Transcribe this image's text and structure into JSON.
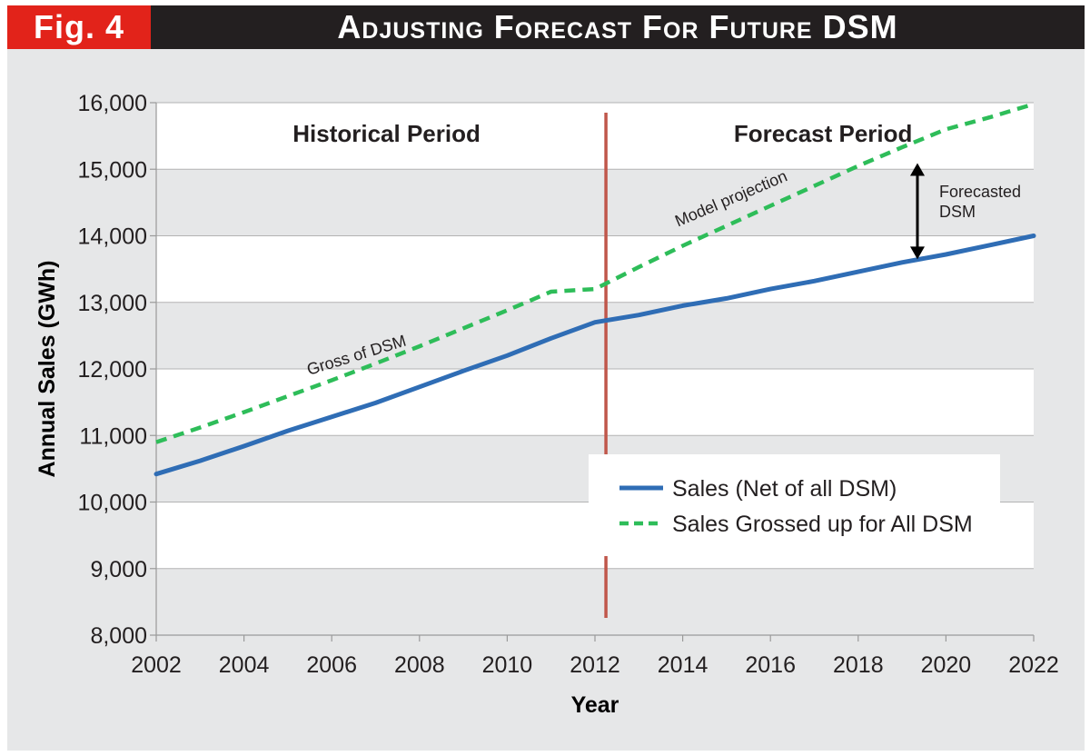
{
  "header": {
    "fig_label": "Fig. 4",
    "title": "Adjusting Forecast For Future DSM"
  },
  "colors": {
    "net_sales": "#2f6db5",
    "grossed_sales": "#2ebd59",
    "divider": "#c0574b",
    "header_bg": "#231f20",
    "badge_bg": "#e2231a",
    "panel_bg": "#e6e7e8"
  },
  "chart_data": {
    "type": "line",
    "xlabel": "Year",
    "ylabel": "Annual Sales (GWh)",
    "xlim": [
      2002,
      2022
    ],
    "ylim": [
      8000,
      16000
    ],
    "x_ticks": [
      "2002",
      "2004",
      "2006",
      "2008",
      "2010",
      "2012",
      "2014",
      "2016",
      "2018",
      "2020",
      "2022"
    ],
    "y_ticks": [
      "8,000",
      "9,000",
      "10,000",
      "11,000",
      "12,000",
      "13,000",
      "14,000",
      "15,000",
      "16,000"
    ],
    "grid": "horizontal bands",
    "divider_x": 2012.25,
    "period_labels": {
      "historical": "Historical Period",
      "forecast": "Forecast Period"
    },
    "series": [
      {
        "name": "Sales (Net of all DSM)",
        "style": "solid",
        "x": [
          2002,
          2003,
          2004,
          2005,
          2006,
          2007,
          2008,
          2009,
          2010,
          2011,
          2012,
          2013,
          2014,
          2015,
          2016,
          2017,
          2018,
          2019,
          2020,
          2021,
          2022
        ],
        "values": [
          10420,
          10620,
          10840,
          11070,
          11280,
          11490,
          11730,
          11970,
          12200,
          12460,
          12700,
          12810,
          12950,
          13060,
          13200,
          13320,
          13460,
          13600,
          13720,
          13860,
          14000
        ]
      },
      {
        "name": "Sales Grossed up for All DSM",
        "style": "dashed",
        "x": [
          2002,
          2003,
          2004,
          2005,
          2006,
          2007,
          2008,
          2009,
          2010,
          2011,
          2012,
          2013,
          2014,
          2015,
          2016,
          2017,
          2018,
          2019,
          2020,
          2021,
          2022
        ],
        "values": [
          10900,
          11120,
          11350,
          11590,
          11830,
          12080,
          12340,
          12610,
          12880,
          13160,
          13200,
          13530,
          13850,
          14150,
          14450,
          14750,
          15050,
          15330,
          15600,
          15780,
          15980
        ]
      }
    ],
    "annotations": {
      "gross_of_dsm": "Gross of DSM",
      "model_projection": "Model projection",
      "forecasted_dsm": [
        "Forecasted",
        "DSM"
      ]
    },
    "legend": {
      "position": "bottom-right",
      "items": [
        {
          "label": "Sales (Net of all DSM)",
          "style": "solid"
        },
        {
          "label": "Sales Grossed up for All DSM",
          "style": "dashed"
        }
      ]
    }
  }
}
